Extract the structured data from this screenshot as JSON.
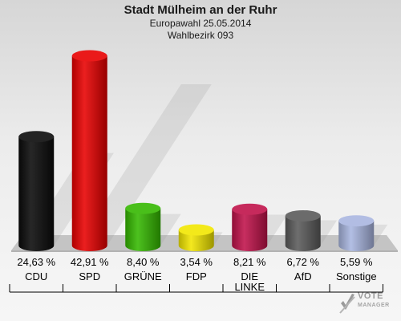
{
  "header": {
    "title": "Stadt Mülheim an der Ruhr",
    "subtitle": "Europawahl 25.05.2014",
    "district": "Wahlbezirk 093"
  },
  "logo": {
    "text": "VOTE",
    "sub": "MANAGER",
    "icon": "vote-checkmark-icon"
  },
  "chart_data": {
    "type": "bar",
    "categories": [
      "CDU",
      "SPD",
      "GRÜNE",
      "FDP",
      "DIE LINKE",
      "AfD",
      "Sonstige"
    ],
    "category_lines": [
      [
        "CDU"
      ],
      [
        "SPD"
      ],
      [
        "GRÜNE"
      ],
      [
        "FDP"
      ],
      [
        "DIE",
        "LINKE"
      ],
      [
        "AfD"
      ],
      [
        "Sonstige"
      ]
    ],
    "values": [
      24.63,
      42.91,
      8.4,
      3.54,
      8.21,
      6.72,
      5.59
    ],
    "labels": [
      "24,63 %",
      "42,91 %",
      "8,40 %",
      "3,54 %",
      "8,21 %",
      "6,72 %",
      "5,59 %"
    ],
    "colors": [
      "#0a0a0a",
      "#e80000",
      "#35b800",
      "#f2e600",
      "#c0124a",
      "#5a5a5a",
      "#a9b6e0"
    ],
    "unit": "%",
    "ylim": [
      0,
      45
    ],
    "grid": false,
    "legend": "none"
  }
}
